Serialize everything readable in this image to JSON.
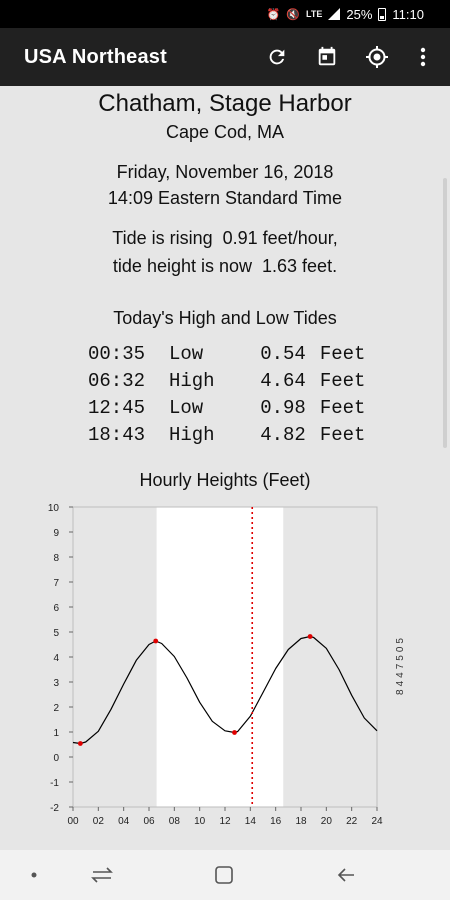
{
  "status_bar": {
    "lte": "LTE",
    "battery": "25%",
    "time": "11:10"
  },
  "app_bar": {
    "title": "USA Northeast",
    "icons": [
      "refresh-icon",
      "calendar-icon",
      "location-icon",
      "more-vert-icon"
    ]
  },
  "station": {
    "name": "Chatham, Stage Harbor",
    "region": "Cape Cod, MA"
  },
  "datetime": {
    "date": "Friday, November 16, 2018",
    "time": "14:09 Eastern Standard Time"
  },
  "tide_status": {
    "line1": "Tide is rising  0.91 feet/hour,",
    "line2": "tide height is now  1.63 feet."
  },
  "tides_table": {
    "title": "Today's High and Low Tides",
    "rows": [
      {
        "time": "00:35",
        "type": "Low",
        "value": "0.54",
        "unit": "Feet"
      },
      {
        "time": "06:32",
        "type": "High",
        "value": "4.64",
        "unit": "Feet"
      },
      {
        "time": "12:45",
        "type": "Low",
        "value": "0.98",
        "unit": "Feet"
      },
      {
        "time": "18:43",
        "type": "High",
        "value": "4.82",
        "unit": "Feet"
      }
    ]
  },
  "chart_title": "Hourly Heights (Feet)",
  "chart_data": {
    "type": "line",
    "title": "Hourly Heights (Feet)",
    "station_id": "8447505",
    "x_ticks": [
      "00",
      "02",
      "04",
      "06",
      "08",
      "10",
      "12",
      "14",
      "16",
      "18",
      "20",
      "22",
      "24"
    ],
    "y_ticks": [
      "10",
      "9",
      "8",
      "7",
      "6",
      "5",
      "4",
      "3",
      "2",
      "1",
      "0",
      "-1",
      "-2"
    ],
    "xlim": [
      0,
      24
    ],
    "ylim": [
      -2,
      10
    ],
    "daylight": [
      6.6,
      16.6
    ],
    "now_hour": 14.15,
    "extremes": [
      {
        "hour": 0.58,
        "height": 0.54
      },
      {
        "hour": 6.53,
        "height": 4.64
      },
      {
        "hour": 12.75,
        "height": 0.98
      },
      {
        "hour": 18.72,
        "height": 4.82
      }
    ],
    "series": [
      {
        "x": [
          0,
          0.58,
          1,
          2,
          3,
          4,
          5,
          6,
          6.53,
          7,
          8,
          9,
          10,
          11,
          12,
          12.75,
          13,
          14,
          15,
          16,
          17,
          18,
          18.72,
          19,
          20,
          21,
          22,
          23,
          24
        ],
        "y": [
          0.58,
          0.54,
          0.6,
          1.03,
          1.91,
          2.92,
          3.87,
          4.5,
          4.64,
          4.54,
          4.02,
          3.16,
          2.19,
          1.43,
          1.05,
          0.98,
          1.02,
          1.63,
          2.58,
          3.54,
          4.3,
          4.74,
          4.82,
          4.78,
          4.35,
          3.5,
          2.47,
          1.56,
          1.05
        ]
      }
    ],
    "colors": {
      "line": "#000000",
      "now": "#e00000",
      "extreme": "#e00000",
      "night": "#e6e6e6",
      "day": "#ffffff"
    }
  },
  "nav_bar": {
    "icons": [
      "dot-icon",
      "recents-icon",
      "home-icon",
      "back-icon"
    ]
  }
}
